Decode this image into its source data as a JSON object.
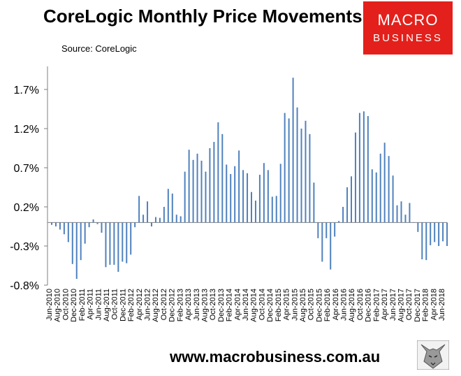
{
  "header": {
    "title": "CoreLogic Monthly Price Movements",
    "source": "Source: CoreLogic"
  },
  "logo": {
    "line1": "MACRO",
    "line2": "BUSINESS"
  },
  "footer": {
    "url": "www.macrobusiness.com.au"
  },
  "chart_data": {
    "type": "bar",
    "x_tick_labels": [
      "Jun-2010",
      "Aug-2010",
      "Oct-2010",
      "Dec-2010",
      "Feb-2011",
      "Apr-2011",
      "Jun-2011",
      "Aug-2011",
      "Oct-2011",
      "Dec-2011",
      "Feb-2012",
      "Apr-2012",
      "Jun-2012",
      "Aug-2012",
      "Oct-2012",
      "Dec-2012",
      "Feb-2013",
      "Apr-2013",
      "Jun-2013",
      "Aug-2013",
      "Oct-2013",
      "Dec-2013",
      "Feb-2014",
      "Apr-2014",
      "Jun-2014",
      "Aug-2014",
      "Oct-2014",
      "Dec-2014",
      "Feb-2015",
      "Apr-2015",
      "Jun-2015",
      "Aug-2015",
      "Oct-2015",
      "Dec-2015",
      "Feb-2016",
      "Apr-2016",
      "Jun-2016",
      "Aug-2016",
      "Oct-2016",
      "Dec-2016",
      "Feb-2017",
      "Apr-2017",
      "Jun-2017",
      "Aug-2017",
      "Oct-2017",
      "Dec-2017",
      "Feb-2018",
      "Apr-2018",
      "Jun-2018"
    ],
    "y_tick_labels": [
      "1.7%",
      "1.2%",
      "0.7%",
      "0.2%",
      "-0.3%",
      "-0.8%"
    ],
    "y_ticks": [
      1.7,
      1.2,
      0.7,
      0.2,
      -0.3,
      -0.8
    ],
    "ylim": [
      -0.8,
      1.9
    ],
    "color": "#4f81bd",
    "values": [
      -0.03,
      -0.05,
      -0.09,
      -0.15,
      -0.25,
      -0.53,
      -0.72,
      -0.48,
      -0.27,
      -0.06,
      0.04,
      -0.02,
      -0.13,
      -0.57,
      -0.54,
      -0.54,
      -0.63,
      -0.5,
      -0.52,
      -0.41,
      -0.06,
      0.34,
      0.1,
      0.27,
      -0.05,
      0.07,
      0.06,
      0.2,
      0.43,
      0.37,
      0.1,
      0.08,
      0.65,
      0.93,
      0.8,
      0.88,
      0.79,
      0.65,
      0.95,
      1.03,
      1.28,
      1.13,
      0.74,
      0.62,
      0.72,
      0.92,
      0.67,
      0.63,
      0.39,
      0.28,
      0.61,
      0.76,
      0.67,
      0.33,
      0.34,
      0.75,
      1.4,
      1.33,
      1.85,
      1.47,
      1.2,
      1.3,
      1.13,
      0.51,
      -0.2,
      -0.5,
      -0.2,
      -0.6,
      -0.18,
      0.02,
      0.2,
      0.45,
      0.59,
      1.15,
      1.4,
      1.42,
      1.36,
      0.68,
      0.64,
      0.88,
      1.02,
      0.85,
      0.6,
      0.22,
      0.27,
      0.1,
      0.25,
      0.0,
      -0.12,
      -0.47,
      -0.48,
      -0.29,
      -0.25,
      -0.3,
      -0.24,
      -0.3
    ]
  }
}
